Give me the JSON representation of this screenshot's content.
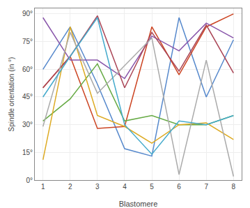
{
  "chart_data": {
    "type": "line",
    "xlabel": "Blastomere",
    "ylabel": "Spindle orientation (in °)",
    "x": [
      1,
      2,
      3,
      4,
      5,
      6,
      7,
      8
    ],
    "xlim": [
      0.7,
      8.3
    ],
    "ylim": [
      0,
      93
    ],
    "xticks": [
      1,
      2,
      3,
      4,
      5,
      6,
      7,
      8
    ],
    "yticks": [
      {
        "value": 0,
        "label": "0°"
      },
      {
        "value": 15,
        "label": "15°"
      },
      {
        "value": 30,
        "label": "30°"
      },
      {
        "value": 45,
        "label": "45°"
      },
      {
        "value": 60,
        "label": "60°"
      },
      {
        "value": 75,
        "label": "75°"
      },
      {
        "value": 90,
        "label": "90°"
      }
    ],
    "grid": true,
    "series": [
      {
        "color": "#5588cc",
        "values": [
          60,
          83,
          52,
          17,
          13,
          88,
          45,
          76
        ]
      },
      {
        "color": "#cc4422",
        "values": [
          50,
          67,
          28,
          29,
          83,
          57,
          83,
          90
        ]
      },
      {
        "color": "#66aa44",
        "values": [
          32,
          44,
          63,
          32,
          35,
          30,
          30,
          35
        ]
      },
      {
        "color": "#ddaa22",
        "values": [
          11,
          83,
          35,
          29,
          20,
          30,
          31,
          22
        ]
      },
      {
        "color": "#8855aa",
        "values": [
          88,
          65,
          65,
          55,
          78,
          70,
          85,
          77
        ]
      },
      {
        "color": "#aa4455",
        "values": [
          50,
          67,
          89,
          50,
          80,
          59,
          84,
          58
        ]
      },
      {
        "color": "#aaaaaa",
        "values": [
          29,
          80,
          47,
          62,
          77,
          3,
          65,
          2
        ]
      },
      {
        "color": "#44aacc",
        "values": [
          45,
          67,
          88,
          30,
          14,
          32,
          30,
          35
        ]
      }
    ]
  }
}
